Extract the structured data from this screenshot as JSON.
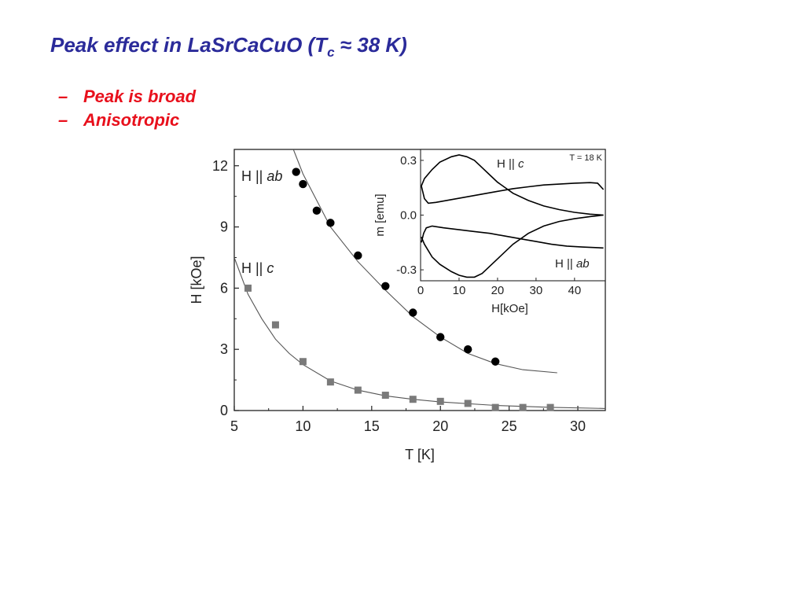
{
  "slide": {
    "title_main": "Peak effect in LaSrCaCuO (T",
    "title_sub": "c",
    "title_end": " ≈ 38 K)",
    "bullets": [
      {
        "dash": "–",
        "text": "Peak is broad"
      },
      {
        "dash": "–",
        "text": "Anisotropic"
      }
    ]
  },
  "chart_data": [
    {
      "type": "scatter",
      "title": "",
      "xlabel": "T [K]",
      "ylabel": "H [kOe]",
      "xlim": [
        5,
        32
      ],
      "ylim": [
        0,
        12.8
      ],
      "xticks": [
        5,
        10,
        15,
        20,
        25,
        30
      ],
      "yticks": [
        0,
        3,
        6,
        9,
        12
      ],
      "grid": false,
      "series": [
        {
          "name": "H || ab",
          "marker": "circle",
          "color": "#000000",
          "x": [
            9.5,
            10,
            11,
            12,
            14,
            16,
            18,
            20,
            22,
            24
          ],
          "y": [
            11.7,
            11.1,
            9.8,
            9.2,
            7.6,
            6.1,
            4.8,
            3.6,
            3.0,
            2.4
          ]
        },
        {
          "name": "H || c",
          "marker": "square",
          "color": "#7a7a7a",
          "x": [
            6,
            8,
            10,
            12,
            14,
            16,
            18,
            20,
            22,
            24,
            26,
            28
          ],
          "y": [
            6.0,
            4.2,
            2.4,
            1.4,
            1.0,
            0.75,
            0.55,
            0.45,
            0.35,
            0.15,
            0.15,
            0.15
          ]
        }
      ],
      "fits": [
        {
          "series": "H || ab",
          "x": [
            9.3,
            10,
            12,
            14,
            16,
            18,
            20,
            22,
            24,
            26,
            28.5
          ],
          "y": [
            12.8,
            11.6,
            9.0,
            7.3,
            5.9,
            4.6,
            3.6,
            2.8,
            2.3,
            2.0,
            1.85
          ]
        },
        {
          "series": "H || c",
          "x": [
            5,
            6,
            7,
            8,
            9,
            10,
            12,
            14,
            16,
            18,
            20,
            24,
            28,
            32
          ],
          "y": [
            7.5,
            5.7,
            4.5,
            3.5,
            2.8,
            2.25,
            1.45,
            1.0,
            0.72,
            0.55,
            0.42,
            0.25,
            0.16,
            0.1
          ]
        }
      ]
    },
    {
      "type": "line",
      "title": "",
      "annotation": "T = 18 K",
      "xlabel": "H[kOe]",
      "ylabel": "m [emu]",
      "xlim": [
        0,
        48
      ],
      "ylim": [
        -0.36,
        0.36
      ],
      "xticks": [
        0,
        10,
        20,
        30,
        40
      ],
      "yticks": [
        -0.3,
        0.0,
        0.3
      ],
      "ytick_labels": [
        "-0.3",
        "0.0",
        "0.3"
      ],
      "series": [
        {
          "name": "H || c",
          "color": "#000000",
          "loops": [
            {
              "x": [
                0.2,
                1,
                3,
                5,
                8,
                10,
                12,
                14,
                16,
                18,
                20,
                24,
                28,
                32,
                36,
                40,
                44,
                47.5
              ],
              "y": [
                0.16,
                0.2,
                0.25,
                0.29,
                0.32,
                0.33,
                0.32,
                0.3,
                0.26,
                0.22,
                0.18,
                0.12,
                0.08,
                0.05,
                0.03,
                0.015,
                0.005,
                0.0
              ]
            },
            {
              "x": [
                0.2,
                1,
                3,
                5,
                8,
                10,
                12,
                14,
                16,
                18,
                20,
                24,
                28,
                32,
                36,
                40,
                44,
                47.5
              ],
              "y": [
                -0.12,
                -0.16,
                -0.23,
                -0.27,
                -0.31,
                -0.33,
                -0.34,
                -0.34,
                -0.32,
                -0.28,
                -0.24,
                -0.16,
                -0.1,
                -0.06,
                -0.035,
                -0.02,
                -0.008,
                0.0
              ]
            }
          ]
        },
        {
          "name": "H || ab",
          "color": "#000000",
          "loops": [
            {
              "x": [
                0.2,
                1,
                2,
                4,
                8,
                12,
                16,
                20,
                24,
                28,
                32,
                36,
                40,
                44,
                46,
                47.5
              ],
              "y": [
                0.16,
                0.09,
                0.065,
                0.07,
                0.085,
                0.1,
                0.115,
                0.13,
                0.145,
                0.155,
                0.165,
                0.17,
                0.175,
                0.178,
                0.175,
                0.14
              ]
            },
            {
              "x": [
                0.2,
                0.8,
                1.5,
                3,
                6,
                10,
                14,
                18,
                22,
                26,
                30,
                34,
                38,
                42,
                47.5
              ],
              "y": [
                -0.15,
                -0.1,
                -0.07,
                -0.06,
                -0.07,
                -0.08,
                -0.09,
                -0.1,
                -0.115,
                -0.13,
                -0.145,
                -0.16,
                -0.17,
                -0.175,
                -0.18
              ]
            }
          ]
        }
      ]
    }
  ]
}
